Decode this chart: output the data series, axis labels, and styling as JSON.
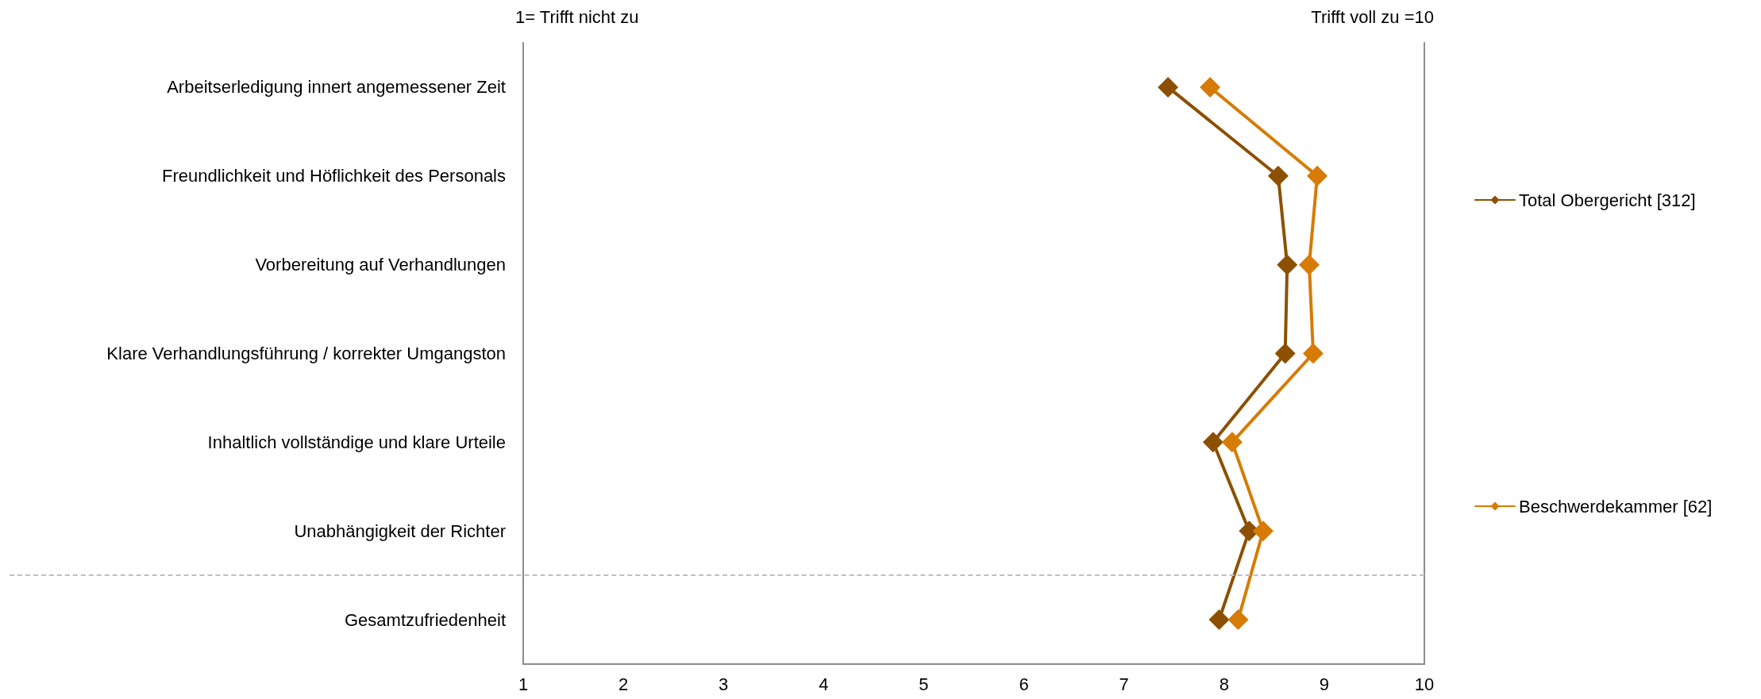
{
  "chart_data": {
    "type": "line",
    "orientation": "horizontal",
    "categories": [
      "Arbeitserledigung innert angemessener Zeit",
      "Freundlichkeit und Höflichkeit des Personals",
      "Vorbereitung auf Verhandlungen",
      "Klare Verhandlungsführung / korrekter Umgangston",
      "Inhaltlich vollständige und klare Urteile",
      "Unabhängigkeit der Richter",
      "Gesamtzufriedenheit"
    ],
    "series": [
      {
        "name": "Total Obergericht [312]",
        "color": "#8c5000",
        "values": [
          7.44,
          8.54,
          8.63,
          8.61,
          7.89,
          8.25,
          7.95
        ]
      },
      {
        "name": "Beschwerdekammer [62]",
        "color": "#d67b05",
        "values": [
          7.86,
          8.93,
          8.85,
          8.89,
          8.08,
          8.39,
          8.14
        ]
      }
    ],
    "xlim": [
      1,
      10
    ],
    "xticks": [
      1,
      2,
      3,
      4,
      5,
      6,
      7,
      8,
      9,
      10
    ],
    "annotations": [
      "1= Trifft nicht zu",
      "Trifft voll zu =10"
    ],
    "legend": "right",
    "marker": "diamond",
    "line_style": "solid",
    "grid": false
  }
}
